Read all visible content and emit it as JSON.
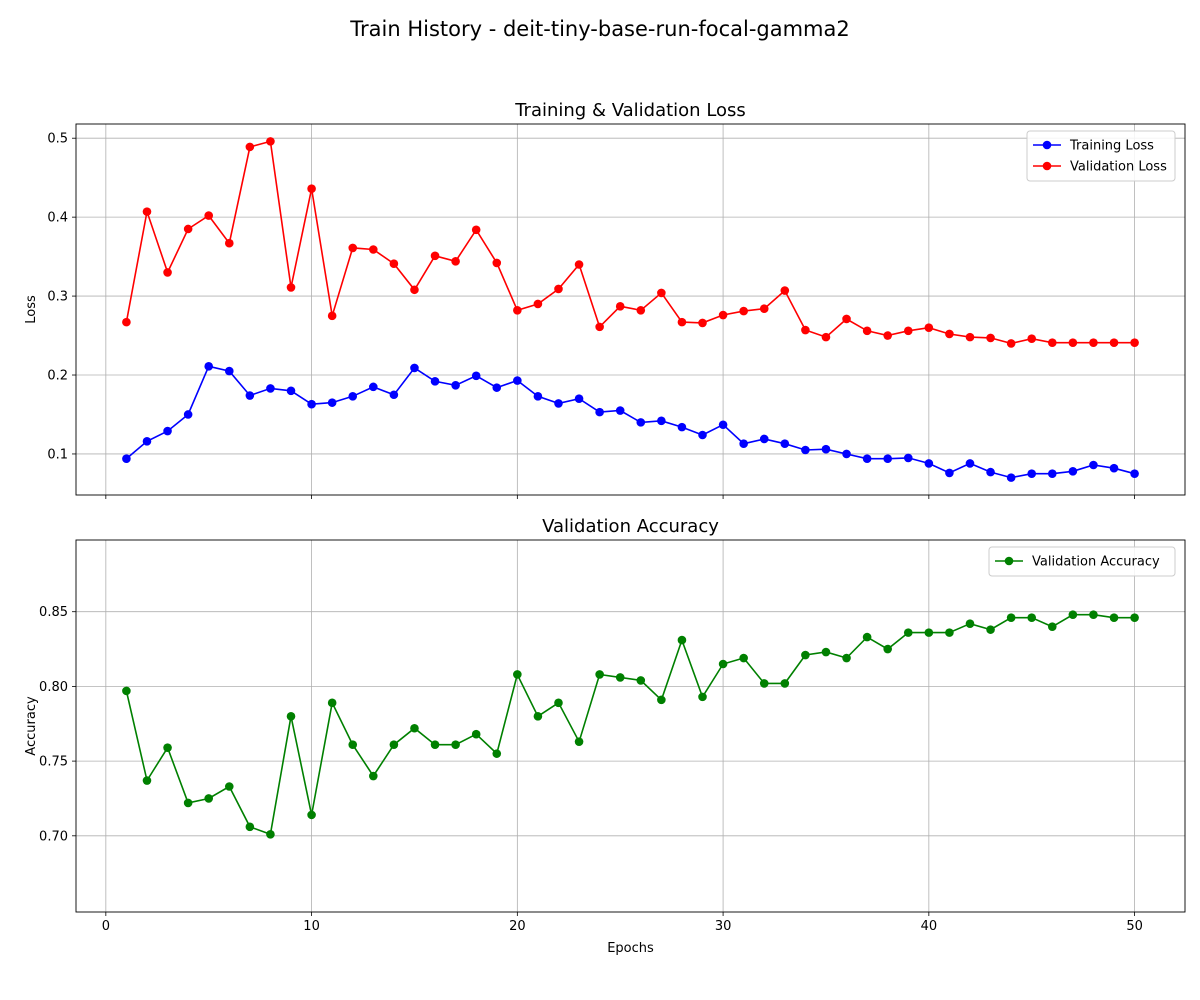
{
  "suptitle": "Train History - deit-tiny-base-run-focal-gamma2",
  "chart_data": [
    {
      "type": "line",
      "title": "Training & Validation Loss",
      "xlabel": "",
      "ylabel": "Loss",
      "xlim": [
        -1.45,
        52.45
      ],
      "ylim": [
        0.048,
        0.518
      ],
      "xticks": [
        0,
        10,
        20,
        30,
        40,
        50
      ],
      "yticks": [
        0.1,
        0.2,
        0.3,
        0.4,
        0.5
      ],
      "ytick_labels": [
        "0.1",
        "0.2",
        "0.3",
        "0.4",
        "0.5"
      ],
      "show_xtick_labels": false,
      "grid": true,
      "legend_position": "upper right",
      "x": [
        1,
        2,
        3,
        4,
        5,
        6,
        7,
        8,
        9,
        10,
        11,
        12,
        13,
        14,
        15,
        16,
        17,
        18,
        19,
        20,
        21,
        22,
        23,
        24,
        25,
        26,
        27,
        28,
        29,
        30,
        31,
        32,
        33,
        34,
        35,
        36,
        37,
        38,
        39,
        40,
        41,
        42,
        43,
        44,
        45,
        46,
        47,
        48,
        49,
        50
      ],
      "series": [
        {
          "name": "Training Loss",
          "color": "#0000ff",
          "values": [
            0.094,
            0.116,
            0.129,
            0.15,
            0.211,
            0.205,
            0.174,
            0.183,
            0.18,
            0.163,
            0.165,
            0.173,
            0.185,
            0.175,
            0.209,
            0.192,
            0.187,
            0.199,
            0.184,
            0.193,
            0.173,
            0.164,
            0.17,
            0.153,
            0.155,
            0.14,
            0.142,
            0.134,
            0.124,
            0.137,
            0.113,
            0.119,
            0.113,
            0.105,
            0.106,
            0.1,
            0.094,
            0.094,
            0.095,
            0.088,
            0.076,
            0.088,
            0.077,
            0.07,
            0.075,
            0.075,
            0.078,
            0.086,
            0.082,
            0.075
          ]
        },
        {
          "name": "Validation Loss",
          "color": "#ff0000",
          "values": [
            0.267,
            0.407,
            0.33,
            0.385,
            0.402,
            0.367,
            0.489,
            0.496,
            0.311,
            0.436,
            0.275,
            0.361,
            0.359,
            0.341,
            0.308,
            0.351,
            0.344,
            0.384,
            0.342,
            0.282,
            0.29,
            0.309,
            0.34,
            0.261,
            0.287,
            0.282,
            0.304,
            0.267,
            0.266,
            0.276,
            0.281,
            0.284,
            0.307,
            0.257,
            0.248,
            0.271,
            0.256,
            0.25,
            0.256,
            0.26,
            0.252,
            0.248,
            0.247,
            0.24,
            0.246,
            0.241,
            0.241,
            0.241,
            0.241,
            0.241
          ]
        }
      ]
    },
    {
      "type": "line",
      "title": "Validation Accuracy",
      "xlabel": "Epochs",
      "ylabel": "Accuracy",
      "xlim": [
        -1.45,
        52.45
      ],
      "ylim": [
        0.649,
        0.898
      ],
      "xticks": [
        0,
        10,
        20,
        30,
        40,
        50
      ],
      "xtick_labels": [
        "0",
        "10",
        "20",
        "30",
        "40",
        "50"
      ],
      "yticks": [
        0.7,
        0.75,
        0.8,
        0.85
      ],
      "ytick_labels": [
        "0.70",
        "0.75",
        "0.80",
        "0.85"
      ],
      "show_xtick_labels": true,
      "grid": true,
      "legend_position": "upper right",
      "x": [
        1,
        2,
        3,
        4,
        5,
        6,
        7,
        8,
        9,
        10,
        11,
        12,
        13,
        14,
        15,
        16,
        17,
        18,
        19,
        20,
        21,
        22,
        23,
        24,
        25,
        26,
        27,
        28,
        29,
        30,
        31,
        32,
        33,
        34,
        35,
        36,
        37,
        38,
        39,
        40,
        41,
        42,
        43,
        44,
        45,
        46,
        47,
        48,
        49,
        50
      ],
      "series": [
        {
          "name": "Validation Accuracy",
          "color": "#008000",
          "values": [
            0.797,
            0.737,
            0.759,
            0.722,
            0.725,
            0.733,
            0.706,
            0.701,
            0.78,
            0.714,
            0.789,
            0.761,
            0.74,
            0.761,
            0.772,
            0.761,
            0.761,
            0.768,
            0.755,
            0.808,
            0.78,
            0.789,
            0.763,
            0.808,
            0.806,
            0.804,
            0.791,
            0.831,
            0.793,
            0.815,
            0.819,
            0.802,
            0.802,
            0.821,
            0.823,
            0.819,
            0.833,
            0.825,
            0.836,
            0.836,
            0.836,
            0.842,
            0.838,
            0.846,
            0.846,
            0.84,
            0.848,
            0.848,
            0.846,
            0.846
          ]
        }
      ]
    }
  ]
}
